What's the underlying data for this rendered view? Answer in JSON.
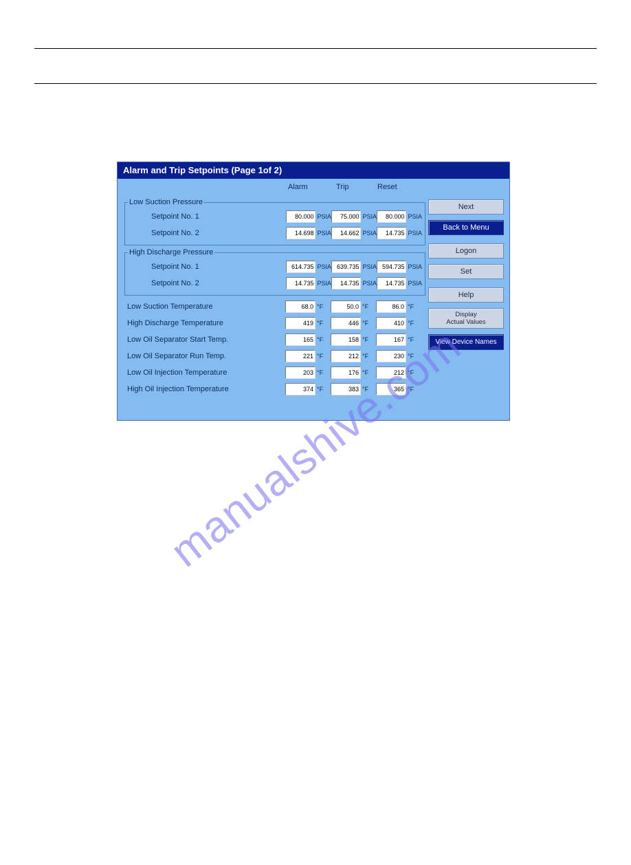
{
  "watermark": "manualshive.com",
  "panel": {
    "title": "Alarm and Trip Setpoints (Page 1of 2)",
    "headers": {
      "alarm": "Alarm",
      "trip": "Trip",
      "reset": "Reset"
    },
    "colors": {
      "panel_bg": "#84bcf1",
      "title_bg": "#0a1f8f",
      "title_text": "#ffffff",
      "label_text": "#0a2a5a",
      "btn_gray_bg": "#cbd5e3",
      "btn_blue_bg": "#0a1f8f"
    },
    "groups": {
      "low_suction": {
        "legend": "Low Suction Pressure",
        "sp1": {
          "label": "Setpoint No. 1",
          "alarm": "80.000",
          "trip": "75.000",
          "reset": "80.000",
          "unit": "PSIA"
        },
        "sp2": {
          "label": "Setpoint No. 2",
          "alarm": "14.698",
          "trip": "14.662",
          "reset": "14.735",
          "unit": "PSIA"
        }
      },
      "high_discharge": {
        "legend": "High Discharge Pressure",
        "sp1": {
          "label": "Setpoint No. 1",
          "alarm": "614.735",
          "trip": "639.735",
          "reset": "594.735",
          "unit": "PSIA"
        },
        "sp2": {
          "label": "Setpoint No. 2",
          "alarm": "14.735",
          "trip": "14.735",
          "reset": "14.735",
          "unit": "PSIA"
        }
      }
    },
    "rows": {
      "low_suction_temp": {
        "label": "Low Suction Temperature",
        "alarm": "68.0",
        "trip": "50.0",
        "reset": "86.0",
        "unit": "°F"
      },
      "high_discharge_temp": {
        "label": "High Discharge Temperature",
        "alarm": "419",
        "trip": "446",
        "reset": "410",
        "unit": "°F"
      },
      "low_oil_sep_start": {
        "label": "Low Oil Separator Start Temp.",
        "alarm": "165",
        "trip": "158",
        "reset": "167",
        "unit": "°F"
      },
      "low_oil_sep_run": {
        "label": "Low Oil Separator Run Temp.",
        "alarm": "221",
        "trip": "212",
        "reset": "230",
        "unit": "°F"
      },
      "low_oil_inj": {
        "label": "Low Oil Injection Temperature",
        "alarm": "203",
        "trip": "176",
        "reset": "212",
        "unit": "°F"
      },
      "high_oil_inj": {
        "label": "High Oil Injection Temperature",
        "alarm": "374",
        "trip": "383",
        "reset": "365",
        "unit": "°F"
      }
    },
    "buttons": {
      "next": "Next",
      "back": "Back to Menu",
      "logon": "Logon",
      "set": "Set",
      "help": "Help",
      "display_actual": "Display\nActual Values",
      "view_device": "View Device Names"
    }
  }
}
